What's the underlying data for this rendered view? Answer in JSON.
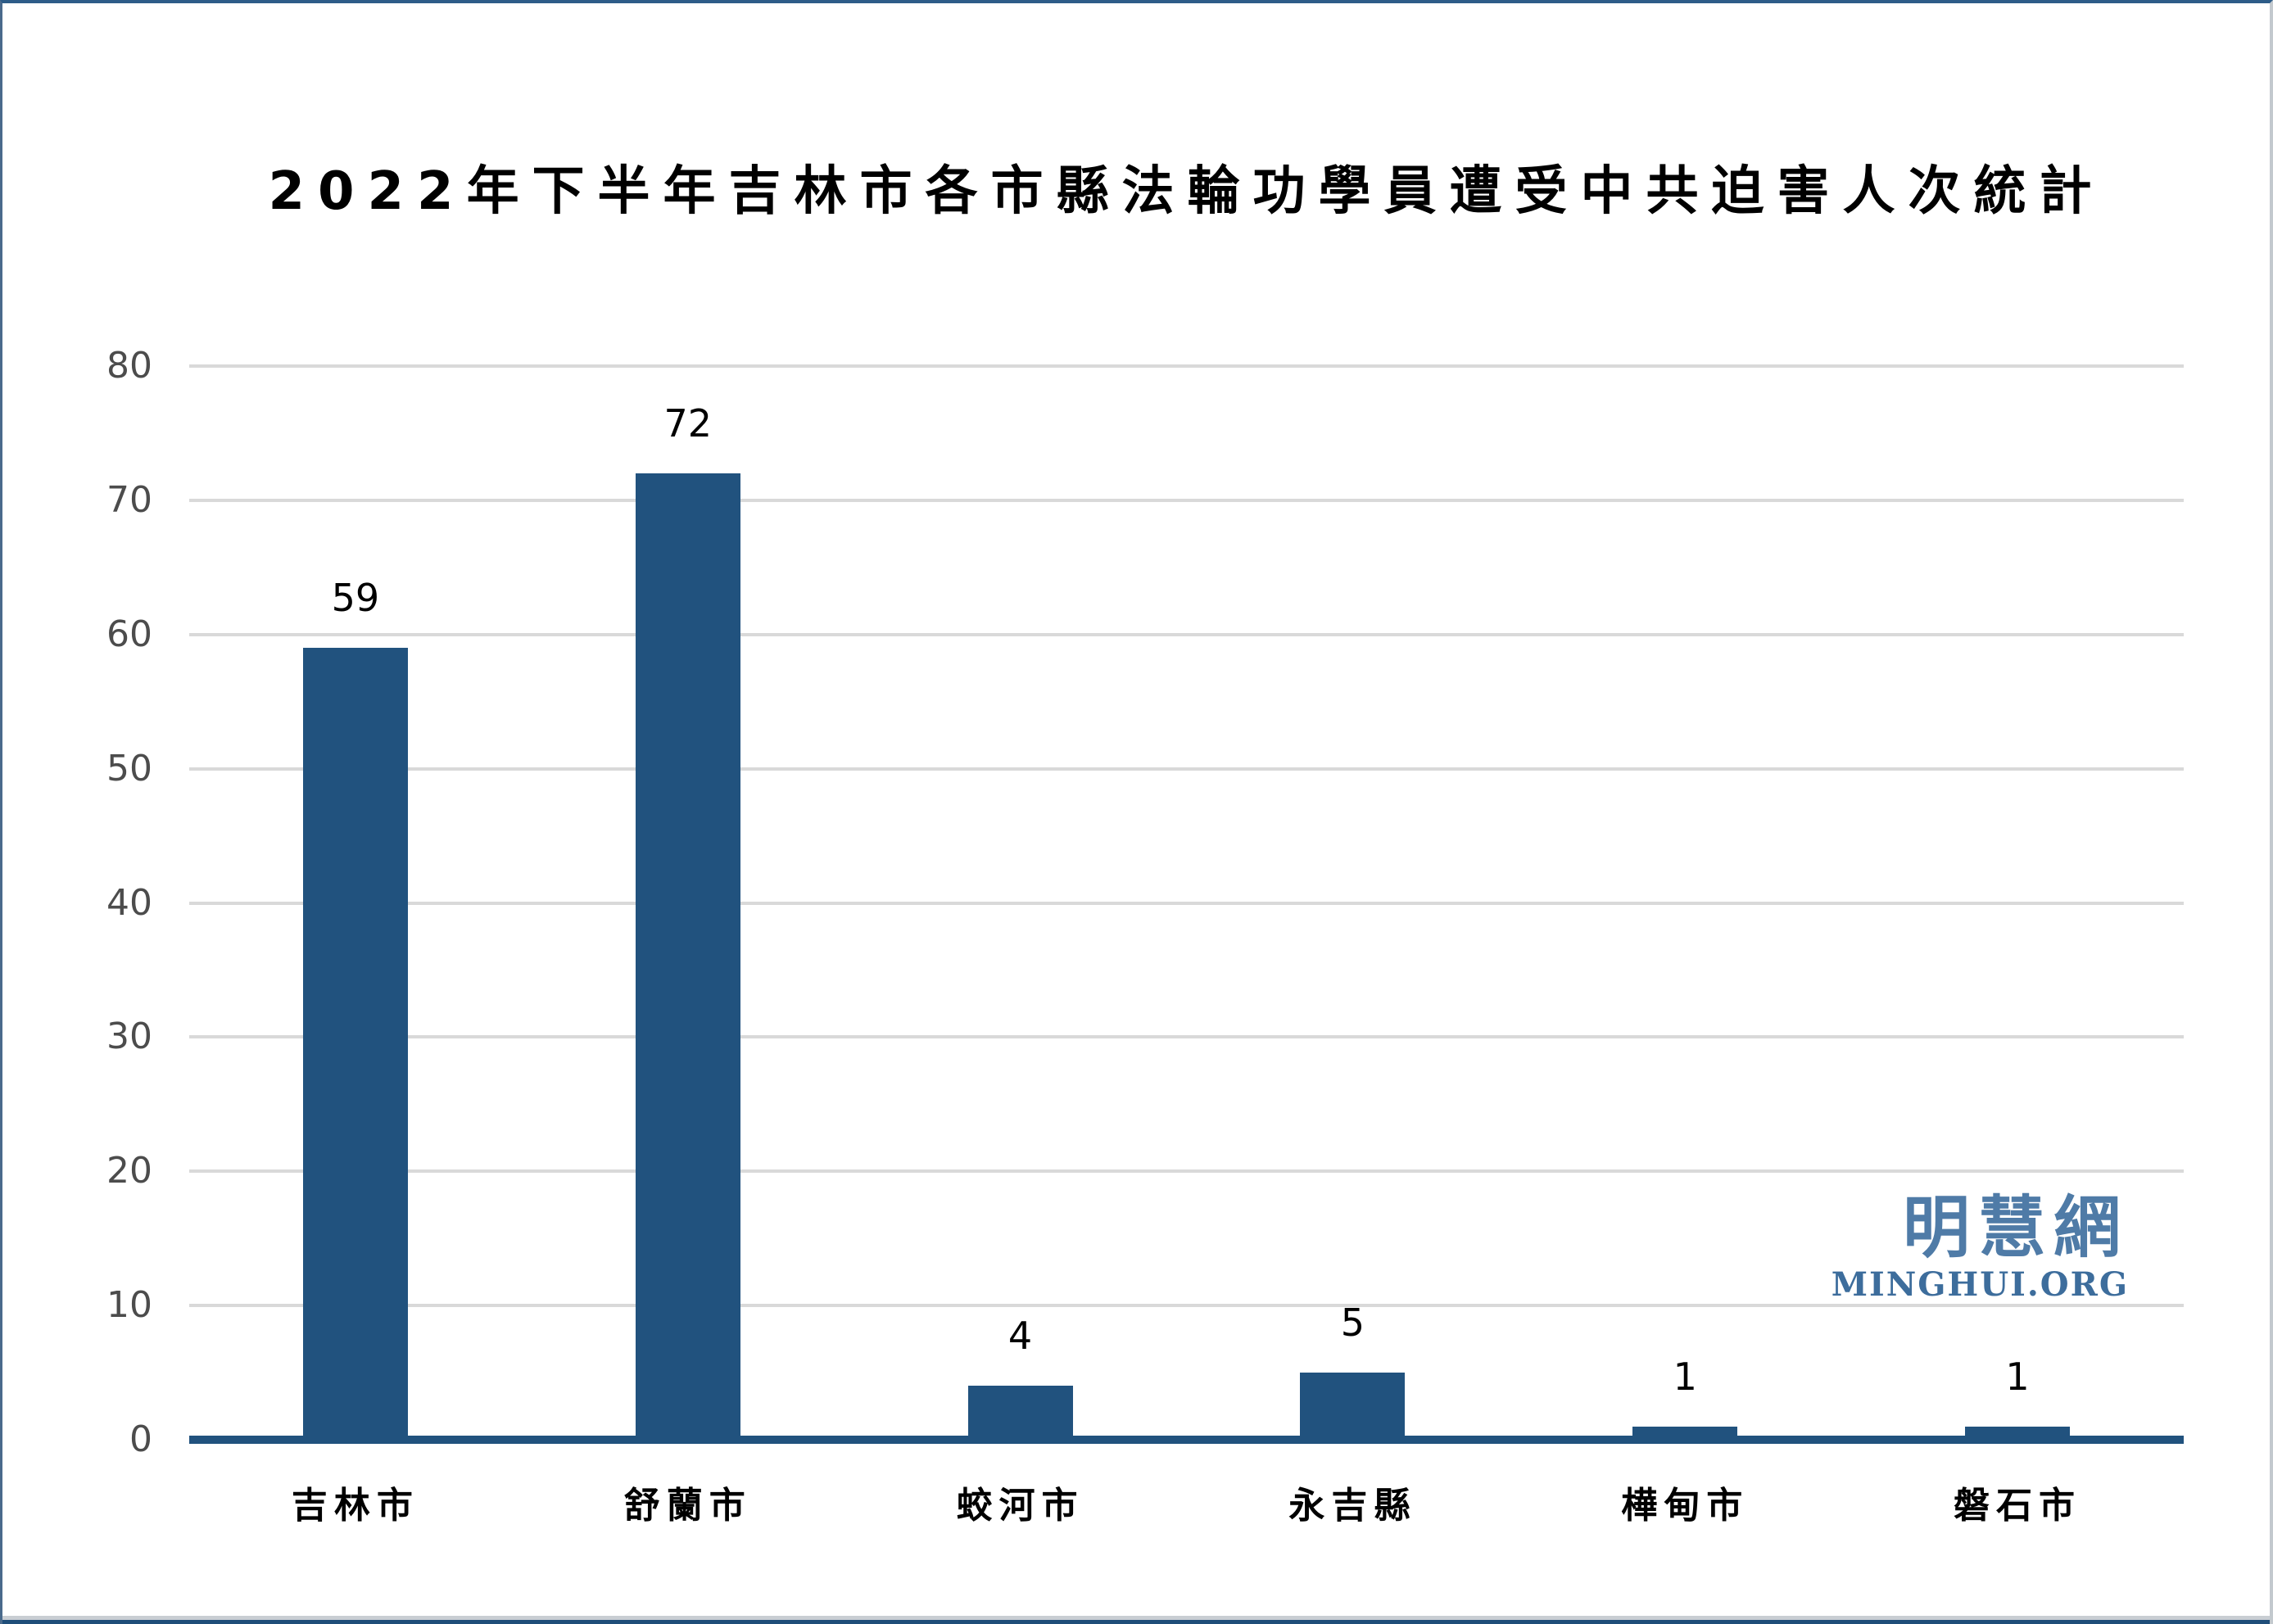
{
  "title": "2022年下半年吉林市各市縣法輪功學員遭受中共迫害人次統計",
  "watermark": {
    "chinese": "明慧網",
    "latin": "MINGHUI.ORG"
  },
  "colors": {
    "bar": "#21527e",
    "axis": "#21527e",
    "gridline": "#d9d9d9",
    "tick_label": "#4c4c4c",
    "watermark_chinese": "#4f7ba7",
    "watermark_latin": "#3d6d9c",
    "bottom_strip": "#1f4e79"
  },
  "chart_data": {
    "type": "bar",
    "categories": [
      "吉林市",
      "舒蘭市",
      "蛟河市",
      "永吉縣",
      "樺甸市",
      "磐石市"
    ],
    "values": [
      59,
      72,
      4,
      5,
      1,
      1
    ],
    "title": "2022年下半年吉林市各市縣法輪功學員遭受中共迫害人次統計",
    "xlabel": "",
    "ylabel": "",
    "ylim": [
      0,
      80
    ],
    "yticks": [
      0,
      10,
      20,
      30,
      40,
      50,
      60,
      70,
      80
    ],
    "grid": true,
    "legend": false,
    "bar_value_labels": true
  }
}
